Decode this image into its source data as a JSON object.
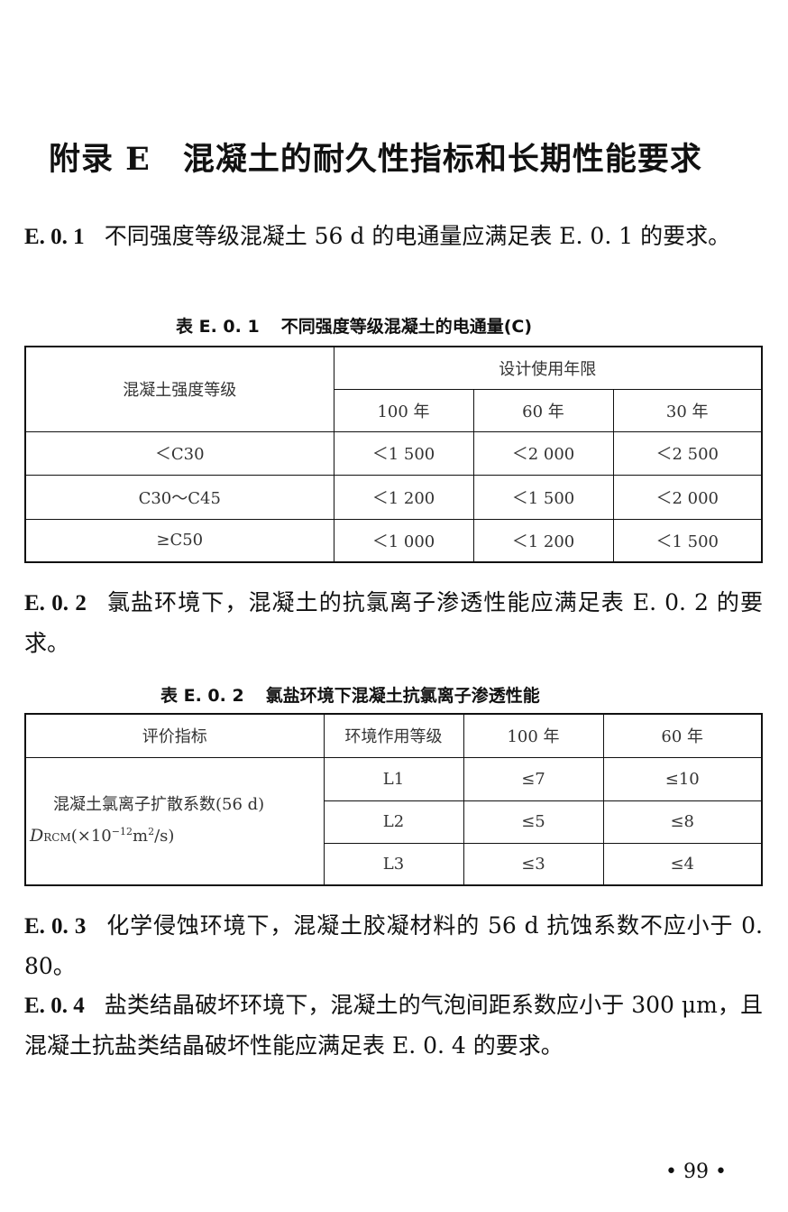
{
  "title": {
    "label": "附录 E",
    "text": "混凝土的耐久性指标和长期性能要求"
  },
  "sections": [
    {
      "num": "E. 0. 1",
      "text": "不同强度等级混凝土 56 d 的电通量应满足表 E. 0. 1 的要求。"
    },
    {
      "num": "E. 0. 2",
      "text": "氯盐环境下，混凝土的抗氯离子渗透性能应满足表 E. 0. 2 的要求。"
    },
    {
      "num": "E. 0. 3",
      "text": "化学侵蚀环境下，混凝土胶凝材料的 56 d 抗蚀系数不应小于 0. 80。"
    },
    {
      "num": "E. 0. 4",
      "text": "盐类结晶破坏环境下，混凝土的气泡间距系数应小于 300 μm，且混凝土抗盐类结晶破坏性能应满足表 E. 0. 4 的要求。"
    }
  ],
  "table1": {
    "caption_num": "表 E. 0. 1",
    "caption": "不同强度等级混凝土的电通量(C)",
    "header_row": "混凝土强度等级",
    "header_group": "设计使用年限",
    "columns": [
      "100 年",
      "60 年",
      "30 年"
    ],
    "rows": [
      {
        "grade": "＜C30",
        "values": [
          "＜1 500",
          "＜2 000",
          "＜2 500"
        ]
      },
      {
        "grade": "C30～C45",
        "values": [
          "＜1 200",
          "＜1 500",
          "＜2 000"
        ]
      },
      {
        "grade": "≥C50",
        "values": [
          "＜1 000",
          "＜1 200",
          "＜1 500"
        ]
      }
    ]
  },
  "table2": {
    "caption_num": "表 E. 0. 2",
    "caption": "氯盐环境下混凝土抗氯离子渗透性能",
    "columns": [
      "评价指标",
      "环境作用等级",
      "100 年",
      "60 年"
    ],
    "indicator_line1": "混凝土氯离子扩散系数(56 d)",
    "indicator_sym": "D",
    "indicator_sub": "RCM",
    "indicator_unit_a": "(×10",
    "indicator_exp": "−12",
    "indicator_unit_b": "m",
    "indicator_exp2": "2",
    "indicator_unit_c": "/s)",
    "rows": [
      {
        "level": "L1",
        "values": [
          "≤7",
          "≤10"
        ]
      },
      {
        "level": "L2",
        "values": [
          "≤5",
          "≤8"
        ]
      },
      {
        "level": "L3",
        "values": [
          "≤3",
          "≤4"
        ]
      }
    ]
  },
  "page_number": "• 99 •"
}
